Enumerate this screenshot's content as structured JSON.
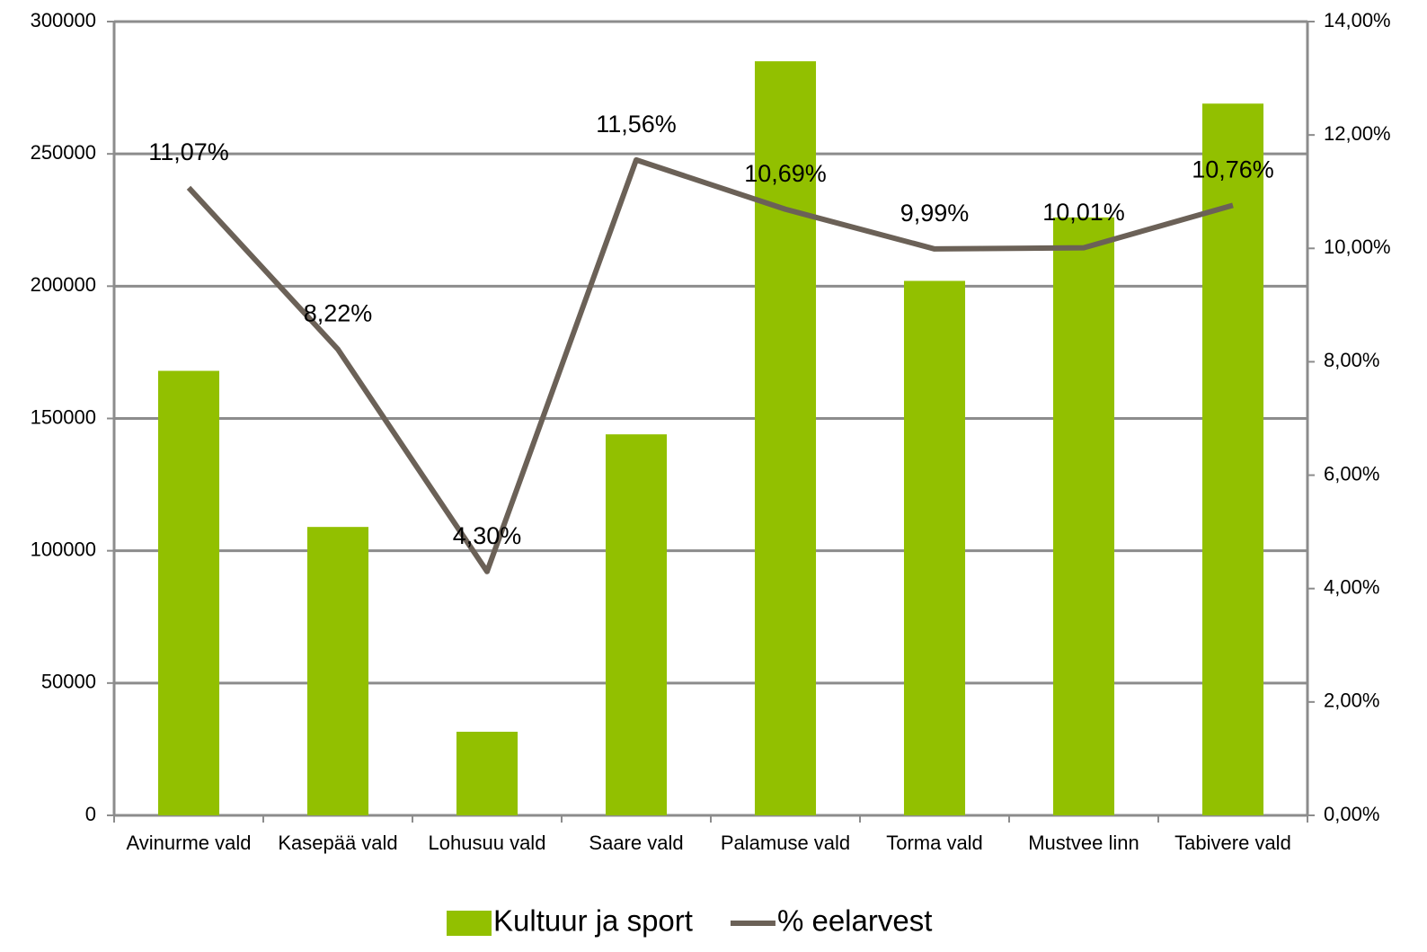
{
  "chart_data": {
    "type": "bar_line",
    "categories": [
      "Avinurme vald",
      "Kasepää vald",
      "Lohusuu vald",
      "Saare vald",
      "Palamuse vald",
      "Torma vald",
      "Mustvee linn",
      "Tabivere vald"
    ],
    "series": [
      {
        "name": "Kultuur ja sport",
        "type": "bar",
        "color": "#92c000",
        "values": [
          168000,
          109000,
          31600,
          144000,
          285000,
          202000,
          226000,
          269000
        ]
      },
      {
        "name": "% eelarvest",
        "type": "line",
        "axis": "y2",
        "color": "#6b6157",
        "values": [
          11.07,
          8.22,
          4.3,
          11.56,
          10.69,
          9.99,
          10.01,
          10.76
        ],
        "value_labels": [
          "11,07%",
          "8,22%",
          "4,30%",
          "11,56%",
          "10,69%",
          "9,99%",
          "10,01%",
          "10,76%"
        ]
      }
    ],
    "ylim": [
      0,
      300000
    ],
    "yticks": [
      0,
      50000,
      100000,
      150000,
      200000,
      250000,
      300000
    ],
    "y2lim": [
      0,
      14
    ],
    "y2ticks": [
      {
        "value": 0,
        "label": "0,00%"
      },
      {
        "value": 2,
        "label": "2,00%"
      },
      {
        "value": 4,
        "label": "4,00%"
      },
      {
        "value": 6,
        "label": "6,00%"
      },
      {
        "value": 8,
        "label": "8,00%"
      },
      {
        "value": 10,
        "label": "10,00%"
      },
      {
        "value": 12,
        "label": "12,00%"
      },
      {
        "value": 14,
        "label": "14,00%"
      }
    ],
    "grid": true,
    "legend": "bottom"
  }
}
